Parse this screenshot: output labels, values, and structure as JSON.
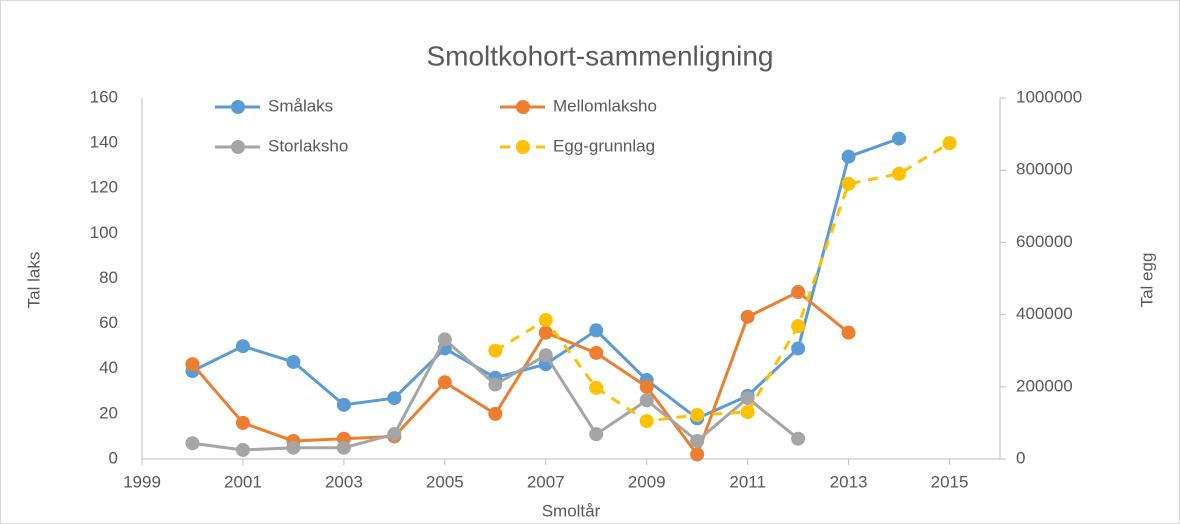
{
  "chart_data": {
    "type": "line",
    "title": "Smoltkohort-sammenligning",
    "x_label": "Smoltår",
    "y_label": "Tal laks",
    "y2_label": "Tal egg",
    "x": [
      2000,
      2001,
      2002,
      2003,
      2004,
      2005,
      2006,
      2007,
      2008,
      2009,
      2010,
      2011,
      2012,
      2013,
      2014,
      2015
    ],
    "series": [
      {
        "name": "Smålaks",
        "color": "#5b9bd5",
        "values": [
          39,
          50,
          43,
          24,
          27,
          49,
          36,
          42,
          57,
          35,
          18,
          28,
          49,
          134,
          142,
          null
        ]
      },
      {
        "name": "Mellomlaksho",
        "color": "#ed7d31",
        "values": [
          42,
          16,
          8,
          9,
          10,
          34,
          20,
          56,
          47,
          32,
          2,
          63,
          74,
          56,
          null,
          null
        ]
      },
      {
        "name": "Storlaksho",
        "color": "#a5a5a5",
        "values": [
          7,
          4,
          5,
          5,
          11,
          53,
          33,
          46,
          11,
          26,
          8,
          27,
          9,
          null,
          null,
          null
        ]
      },
      {
        "name": "Egg-grunnlag",
        "color": "#ffc000",
        "dashed": true,
        "axis": "y2",
        "values": [
          null,
          null,
          null,
          null,
          null,
          null,
          300000,
          385000,
          197000,
          105000,
          122000,
          130000,
          368000,
          762000,
          790000,
          875000
        ]
      }
    ],
    "xlim": [
      1999,
      2016
    ],
    "xticks": [
      1999,
      2001,
      2003,
      2005,
      2007,
      2009,
      2011,
      2013,
      2015
    ],
    "ylim": [
      0,
      160
    ],
    "yticks": [
      0,
      20,
      40,
      60,
      80,
      100,
      120,
      140,
      160
    ],
    "y2lim": [
      0,
      1000000
    ],
    "y2ticks": [
      0,
      200000,
      400000,
      600000,
      800000,
      1000000
    ],
    "grid": false
  }
}
